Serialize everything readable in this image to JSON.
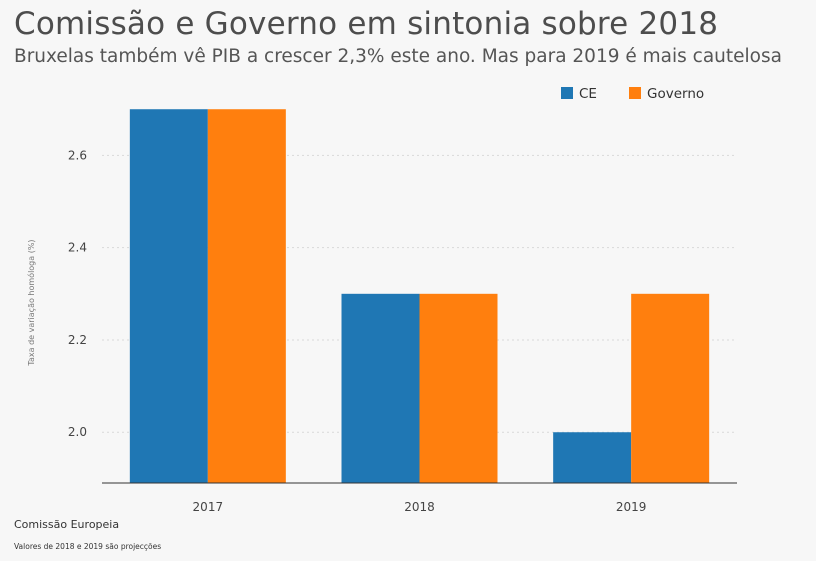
{
  "header": {
    "title": "Comissão e Governo em sintonia sobre 2018",
    "subtitle": "Bruxelas também vê PIB a crescer 2,3% este ano. Mas para 2019 é mais cautelosa"
  },
  "footer": {
    "source": "Comissão Europeia",
    "note": "Valores de 2018 e 2019 são projecções"
  },
  "chart_data": {
    "type": "bar",
    "categories": [
      "2017",
      "2018",
      "2019"
    ],
    "series": [
      {
        "name": "CE",
        "color": "#1f77b4",
        "values": [
          2.7,
          2.3,
          2.0
        ]
      },
      {
        "name": "Governo",
        "color": "#ff7f0e",
        "values": [
          2.7,
          2.3,
          2.3
        ]
      }
    ],
    "ylabel": "Taxa de variação homóloga (%)",
    "xlabel": "",
    "ylim": [
      1.89,
      2.72
    ],
    "yticks": [
      2.0,
      2.2,
      2.4,
      2.6
    ],
    "ytick_labels": [
      "2.0",
      "2.2",
      "2.4",
      "2.6"
    ],
    "grid": true,
    "legend_position": "top-right"
  }
}
